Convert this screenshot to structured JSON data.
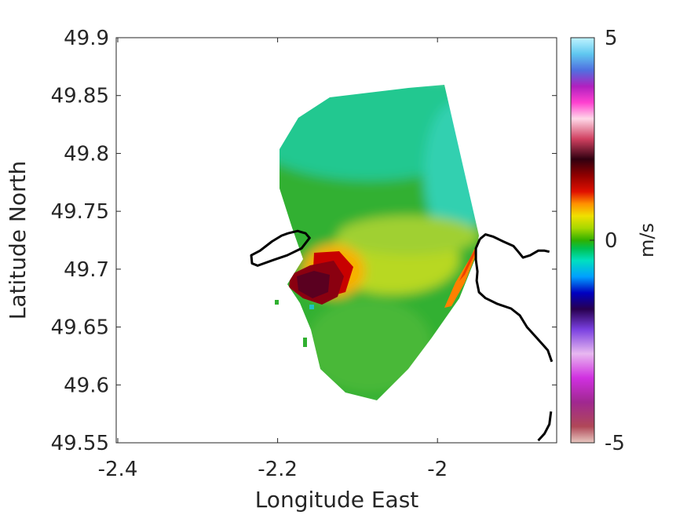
{
  "chart_data": {
    "type": "heatmap",
    "title": "",
    "xlabel": "Longitude East",
    "ylabel": "Latitude North",
    "xlim": [
      -2.4,
      -1.93
    ],
    "ylim": [
      49.55,
      49.9
    ],
    "xticks": [
      -2.4,
      -2.2,
      -2.0
    ],
    "xtick_labels": [
      "-2.4",
      "-2.2",
      "-2"
    ],
    "yticks": [
      49.55,
      49.6,
      49.65,
      49.7,
      49.75,
      49.8,
      49.85,
      49.9
    ],
    "ytick_labels": [
      "49.55",
      "49.6",
      "49.65",
      "49.7",
      "49.75",
      "49.8",
      "49.85",
      "49.9"
    ],
    "grid": false,
    "radar_origin": [
      -1.947,
      49.725
    ],
    "colorbar": {
      "label": "m/s",
      "range": [
        -5,
        5
      ],
      "ticks": [
        5,
        0,
        -5
      ],
      "tick_labels": [
        "5",
        "0",
        "-5"
      ],
      "colormap_stops": [
        {
          "v": -5.0,
          "color": "#e8c8c0"
        },
        {
          "v": -4.6,
          "color": "#b04858"
        },
        {
          "v": -4.0,
          "color": "#a02890"
        },
        {
          "v": -3.4,
          "color": "#d030e0"
        },
        {
          "v": -2.8,
          "color": "#e8b8f0"
        },
        {
          "v": -2.2,
          "color": "#7a40e0"
        },
        {
          "v": -1.7,
          "color": "#280050"
        },
        {
          "v": -1.3,
          "color": "#0000c0"
        },
        {
          "v": -0.9,
          "color": "#00a0ff"
        },
        {
          "v": -0.5,
          "color": "#00e0c0"
        },
        {
          "v": -0.2,
          "color": "#00c050"
        },
        {
          "v": 0.0,
          "color": "#30b000"
        },
        {
          "v": 0.3,
          "color": "#a8d800"
        },
        {
          "v": 0.6,
          "color": "#f0e000"
        },
        {
          "v": 0.9,
          "color": "#ff9000"
        },
        {
          "v": 1.2,
          "color": "#e01000"
        },
        {
          "v": 1.6,
          "color": "#900000"
        },
        {
          "v": 2.0,
          "color": "#300010"
        },
        {
          "v": 2.5,
          "color": "#d04060"
        },
        {
          "v": 3.0,
          "color": "#ffd8e8"
        },
        {
          "v": 3.4,
          "color": "#ff40d0"
        },
        {
          "v": 3.8,
          "color": "#b020c0"
        },
        {
          "v": 4.2,
          "color": "#5070e0"
        },
        {
          "v": 4.6,
          "color": "#60c8f0"
        },
        {
          "v": 5.0,
          "color": "#c0f4ff"
        }
      ]
    },
    "field_regions": [
      {
        "name": "north-sector",
        "value": -0.3,
        "lon_range": [
          -2.18,
          -1.95
        ],
        "lat_range": [
          49.75,
          49.86
        ]
      },
      {
        "name": "central-sector",
        "value": 0.1,
        "lon_range": [
          -2.12,
          -1.96
        ],
        "lat_range": [
          49.66,
          49.75
        ]
      },
      {
        "name": "west-hotspot",
        "value": 2.0,
        "lon_range": [
          -2.18,
          -2.11
        ],
        "lat_range": [
          49.67,
          49.71
        ]
      },
      {
        "name": "east-beam",
        "value": 0.9,
        "lon_range": [
          -2.0,
          -1.95
        ],
        "lat_range": [
          49.66,
          49.72
        ]
      },
      {
        "name": "south-sector",
        "value": -0.1,
        "lon_range": [
          -2.15,
          -2.02
        ],
        "lat_range": [
          49.58,
          49.66
        ]
      }
    ],
    "coastlines": [
      {
        "name": "island-coast",
        "points": [
          [
            -2.187,
            49.731
          ],
          [
            -2.175,
            49.733
          ],
          [
            -2.165,
            49.731
          ],
          [
            -2.16,
            49.727
          ],
          [
            -2.17,
            49.718
          ],
          [
            -2.188,
            49.712
          ],
          [
            -2.205,
            49.708
          ],
          [
            -2.225,
            49.703
          ],
          [
            -2.232,
            49.705
          ],
          [
            -2.233,
            49.712
          ],
          [
            -2.222,
            49.716
          ],
          [
            -2.207,
            49.724
          ],
          [
            -2.195,
            49.729
          ],
          [
            -2.187,
            49.731
          ]
        ]
      },
      {
        "name": "mainland-coast-north",
        "points": [
          [
            -1.947,
            49.726
          ],
          [
            -1.94,
            49.73
          ],
          [
            -1.93,
            49.728
          ],
          [
            -1.918,
            49.724
          ],
          [
            -1.905,
            49.72
          ],
          [
            -1.9,
            49.716
          ],
          [
            -1.893,
            49.71
          ],
          [
            -1.884,
            49.712
          ],
          [
            -1.874,
            49.716
          ],
          [
            -1.866,
            49.716
          ],
          [
            -1.86,
            49.715
          ]
        ]
      },
      {
        "name": "mainland-coast-west",
        "points": [
          [
            -1.947,
            49.726
          ],
          [
            -1.952,
            49.718
          ],
          [
            -1.952,
            49.708
          ],
          [
            -1.95,
            49.698
          ],
          [
            -1.951,
            49.69
          ],
          [
            -1.948,
            49.68
          ],
          [
            -1.94,
            49.675
          ],
          [
            -1.925,
            49.67
          ],
          [
            -1.908,
            49.666
          ],
          [
            -1.897,
            49.66
          ],
          [
            -1.888,
            49.65
          ],
          [
            -1.875,
            49.64
          ],
          [
            -1.862,
            49.63
          ],
          [
            -1.857,
            49.62
          ]
        ]
      },
      {
        "name": "mainland-coast-south",
        "points": [
          [
            -1.858,
            49.577
          ],
          [
            -1.86,
            49.566
          ],
          [
            -1.866,
            49.558
          ],
          [
            -1.874,
            49.552
          ]
        ]
      }
    ]
  }
}
